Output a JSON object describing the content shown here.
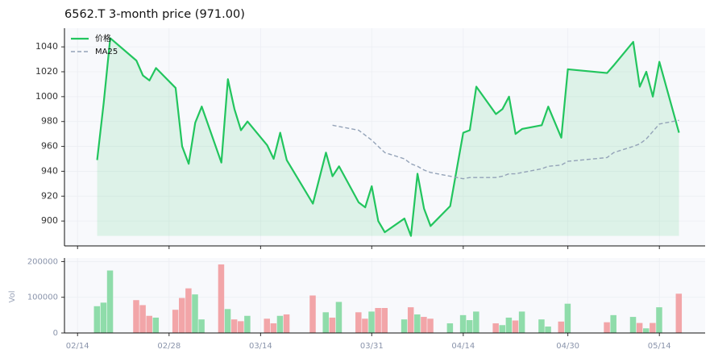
{
  "chart_data": [
    {
      "type": "line",
      "title": "6562.T  3-month price (971.00)",
      "x": [
        "02/17",
        "02/18",
        "02/19",
        "02/23",
        "02/24",
        "02/25",
        "02/26",
        "03/01",
        "03/02",
        "03/03",
        "03/04",
        "03/05",
        "03/08",
        "03/09",
        "03/10",
        "03/11",
        "03/12",
        "03/15",
        "03/16",
        "03/17",
        "03/18",
        "03/22",
        "03/24",
        "03/25",
        "03/26",
        "03/29",
        "03/30",
        "03/31",
        "04/01",
        "04/02",
        "04/05",
        "04/06",
        "04/07",
        "04/08",
        "04/09",
        "04/12",
        "04/14",
        "04/15",
        "04/16",
        "04/19",
        "04/20",
        "04/21",
        "04/22",
        "04/23",
        "04/26",
        "04/27",
        "04/29",
        "04/30",
        "05/06",
        "05/07",
        "05/10",
        "05/11",
        "05/12",
        "05/13",
        "05/14",
        "05/17"
      ],
      "series": [
        {
          "name": "价格",
          "color": "#22c55e",
          "fill": true,
          "values": [
            949,
            995,
            1047,
            1029,
            1017,
            1013,
            1023,
            1007,
            960,
            946,
            979,
            992,
            947,
            1014,
            990,
            973,
            980,
            961,
            950,
            971,
            949,
            914,
            955,
            936,
            944,
            915,
            911,
            928,
            900,
            891,
            902,
            888,
            938,
            910,
            896,
            912,
            971,
            973,
            1008,
            986,
            990,
            1000,
            970,
            974,
            977,
            992,
            967,
            1022,
            1019,
            1025,
            1044,
            1008,
            1020,
            1000,
            1028,
            971
          ]
        },
        {
          "name": "MA25",
          "color": "#94a3b8",
          "dashed": true,
          "values": [
            null,
            null,
            null,
            null,
            null,
            null,
            null,
            null,
            null,
            null,
            null,
            null,
            null,
            null,
            null,
            null,
            null,
            null,
            null,
            null,
            null,
            null,
            null,
            977,
            976,
            973,
            969,
            965,
            960,
            955,
            950,
            946,
            944,
            941,
            939,
            936,
            934,
            935,
            935,
            935,
            936,
            938,
            938,
            939,
            942,
            944,
            945,
            948,
            951,
            955,
            960,
            962,
            966,
            972,
            978,
            981
          ]
        }
      ],
      "xlim": [
        "02/12",
        "05/21"
      ],
      "xticks": [
        "02/14",
        "02/28",
        "03/14",
        "03/31",
        "04/14",
        "04/30",
        "05/14"
      ],
      "ylim": [
        880,
        1055
      ],
      "yticks": [
        900,
        920,
        940,
        960,
        980,
        1000,
        1020,
        1040
      ],
      "grid": true,
      "legend": "upper left"
    },
    {
      "type": "bar",
      "ylabel": "Vol",
      "x": [
        "02/17",
        "02/18",
        "02/19",
        "02/23",
        "02/24",
        "02/25",
        "02/26",
        "03/01",
        "03/02",
        "03/03",
        "03/04",
        "03/05",
        "03/08",
        "03/09",
        "03/10",
        "03/11",
        "03/12",
        "03/15",
        "03/16",
        "03/17",
        "03/18",
        "03/22",
        "03/24",
        "03/25",
        "03/26",
        "03/29",
        "03/30",
        "03/31",
        "04/01",
        "04/02",
        "04/05",
        "04/06",
        "04/07",
        "04/08",
        "04/09",
        "04/12",
        "04/14",
        "04/15",
        "04/16",
        "04/19",
        "04/20",
        "04/21",
        "04/22",
        "04/23",
        "04/26",
        "04/27",
        "04/29",
        "04/30",
        "05/06",
        "05/07",
        "05/10",
        "05/11",
        "05/12",
        "05/13",
        "05/14",
        "05/17"
      ],
      "values": [
        75000,
        85000,
        175000,
        92000,
        78000,
        48000,
        43000,
        65000,
        98000,
        125000,
        108000,
        38000,
        192000,
        67000,
        38000,
        33000,
        48000,
        40000,
        27000,
        48000,
        52000,
        105000,
        58000,
        43000,
        87000,
        58000,
        40000,
        60000,
        70000,
        70000,
        38000,
        72000,
        52000,
        45000,
        40000,
        27000,
        50000,
        36000,
        60000,
        27000,
        22000,
        43000,
        35000,
        60000,
        38000,
        18000,
        32000,
        82000,
        30000,
        50000,
        45000,
        28000,
        13000,
        28000,
        72000,
        110000
      ],
      "up_color": "#8fdcaa",
      "down_color": "#f2a5a8",
      "xlim": [
        "02/12",
        "05/21"
      ],
      "xticks": [
        "02/14",
        "02/28",
        "03/14",
        "03/31",
        "04/14",
        "04/30",
        "05/14"
      ],
      "ylim": [
        0,
        210000
      ],
      "yticks": [
        0,
        100000,
        200000
      ],
      "grid": true
    }
  ]
}
